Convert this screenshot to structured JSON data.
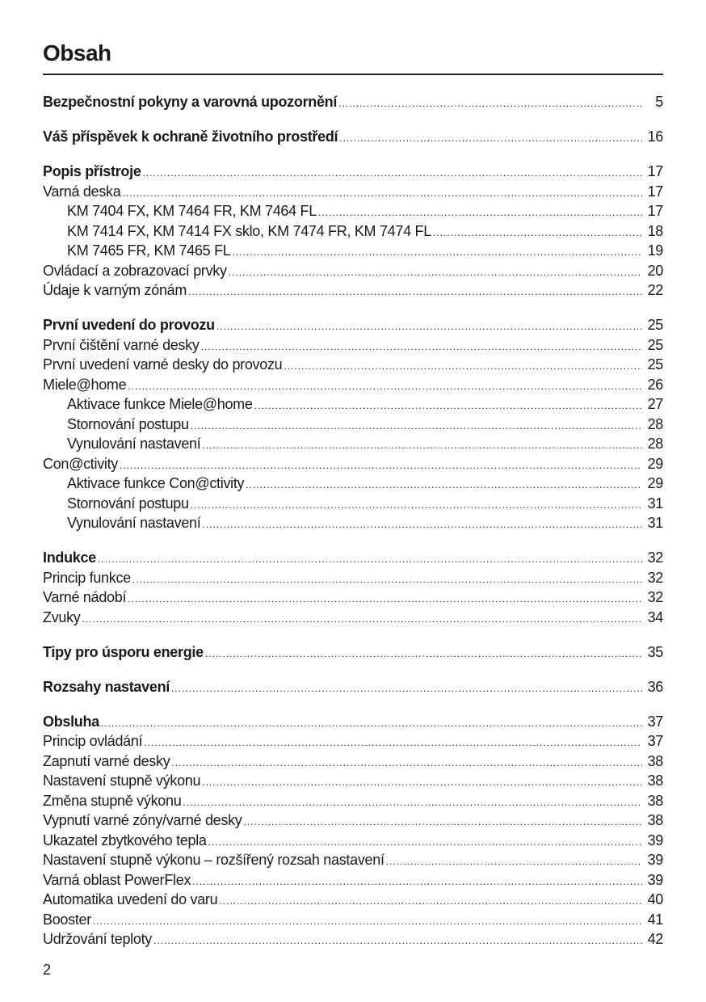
{
  "title": "Obsah",
  "page_number": "2",
  "groups": [
    [
      {
        "label": "Bezpečnostní pokyny a varovná upozornění",
        "page": "5",
        "bold": true
      }
    ],
    [
      {
        "label": "Váš příspěvek k ochraně životního prostředí",
        "page": "16",
        "bold": true
      }
    ],
    [
      {
        "label": "Popis přístroje",
        "page": "17",
        "bold": true
      },
      {
        "label": "Varná deska",
        "page": "17"
      },
      {
        "label": "KM 7404 FX, KM 7464 FR, KM 7464 FL",
        "page": "17",
        "level": 2
      },
      {
        "label": "KM 7414 FX, KM 7414 FX sklo, KM 7474 FR, KM 7474 FL",
        "page": "18",
        "level": 2
      },
      {
        "label": "KM 7465 FR, KM 7465 FL",
        "page": "19",
        "level": 2
      },
      {
        "label": "Ovládací a zobrazovací prvky",
        "page": "20"
      },
      {
        "label": "Údaje k varným zónám",
        "page": "22"
      }
    ],
    [
      {
        "label": "První uvedení do provozu",
        "page": "25",
        "bold": true
      },
      {
        "label": "První čištění varné desky",
        "page": "25"
      },
      {
        "label": "První uvedení varné desky do provozu",
        "page": "25"
      },
      {
        "label": "Miele@home",
        "page": "26"
      },
      {
        "label": "Aktivace funkce Miele@home",
        "page": "27",
        "level": 2
      },
      {
        "label": "Stornování postupu",
        "page": "28",
        "level": 2
      },
      {
        "label": "Vynulování nastavení",
        "page": "28",
        "level": 2
      },
      {
        "label": "Con@ctivity",
        "page": "29"
      },
      {
        "label": "Aktivace funkce Con@ctivity",
        "page": "29",
        "level": 2
      },
      {
        "label": "Stornování postupu",
        "page": "31",
        "level": 2
      },
      {
        "label": "Vynulování nastavení",
        "page": "31",
        "level": 2
      }
    ],
    [
      {
        "label": "Indukce",
        "page": "32",
        "bold": true
      },
      {
        "label": "Princip funkce",
        "page": "32"
      },
      {
        "label": "Varné nádobí",
        "page": "32"
      },
      {
        "label": "Zvuky",
        "page": "34"
      }
    ],
    [
      {
        "label": "Tipy pro úsporu energie",
        "page": "35",
        "bold": true
      }
    ],
    [
      {
        "label": "Rozsahy nastavení",
        "page": "36",
        "bold": true
      }
    ],
    [
      {
        "label": "Obsluha",
        "page": "37",
        "bold": true
      },
      {
        "label": "Princip ovládání",
        "page": "37"
      },
      {
        "label": "Zapnutí varné desky",
        "page": "38"
      },
      {
        "label": "Nastavení stupně výkonu",
        "page": "38"
      },
      {
        "label": "Změna stupně výkonu",
        "page": "38"
      },
      {
        "label": "Vypnutí varné zóny/varné desky",
        "page": "38"
      },
      {
        "label": "Ukazatel zbytkového tepla",
        "page": "39"
      },
      {
        "label": "Nastavení stupně výkonu – rozšířený rozsah nastavení",
        "page": "39"
      },
      {
        "label": "Varná oblast PowerFlex",
        "page": "39"
      },
      {
        "label": "Automatika uvedení do varu",
        "page": "40"
      },
      {
        "label": "Booster",
        "page": "41"
      },
      {
        "label": "Udržování teploty",
        "page": "42"
      }
    ]
  ]
}
